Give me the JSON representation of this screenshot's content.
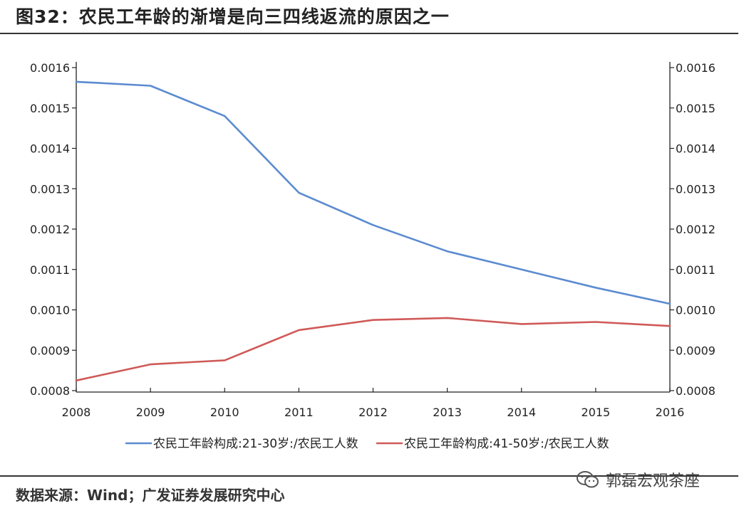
{
  "header": {
    "title": "图32：农民工年龄的渐增是向三四线返流的原因之一"
  },
  "footer": {
    "source": "数据来源：Wind；广发证券发展研究中心",
    "watermark": "郭磊宏观茶座"
  },
  "chart_data": {
    "type": "line",
    "title": "",
    "xlabel": "",
    "ylabel": "",
    "x": [
      2008,
      2009,
      2010,
      2011,
      2012,
      2013,
      2014,
      2015,
      2016
    ],
    "xlim": [
      2008,
      2016
    ],
    "ylim": [
      0.0008,
      0.0016
    ],
    "yticks": [
      "0.0008",
      "0.0009",
      "0.0010",
      "0.0011",
      "0.0012",
      "0.0013",
      "0.0014",
      "0.0015",
      "0.0016"
    ],
    "y2ticks": [
      "0.0008",
      "0.0009",
      "0.0010",
      "0.0011",
      "0.0012",
      "0.0013",
      "0.0014",
      "0.0015",
      "0.0016"
    ],
    "grid": false,
    "legend_position": "bottom",
    "series": [
      {
        "name": "农民工年龄构成:21-30岁:/农民工人数",
        "color": "#5b8bd0",
        "values": [
          0.001565,
          0.001555,
          0.00148,
          0.00129,
          0.00121,
          0.001145,
          0.0011,
          0.001055,
          0.001015
        ]
      },
      {
        "name": "农民工年龄构成:41-50岁:/农民工人数",
        "color": "#cf5a58",
        "values": [
          0.000825,
          0.000865,
          0.000875,
          0.00095,
          0.000975,
          0.00098,
          0.000965,
          0.00097,
          0.00096
        ]
      }
    ]
  }
}
